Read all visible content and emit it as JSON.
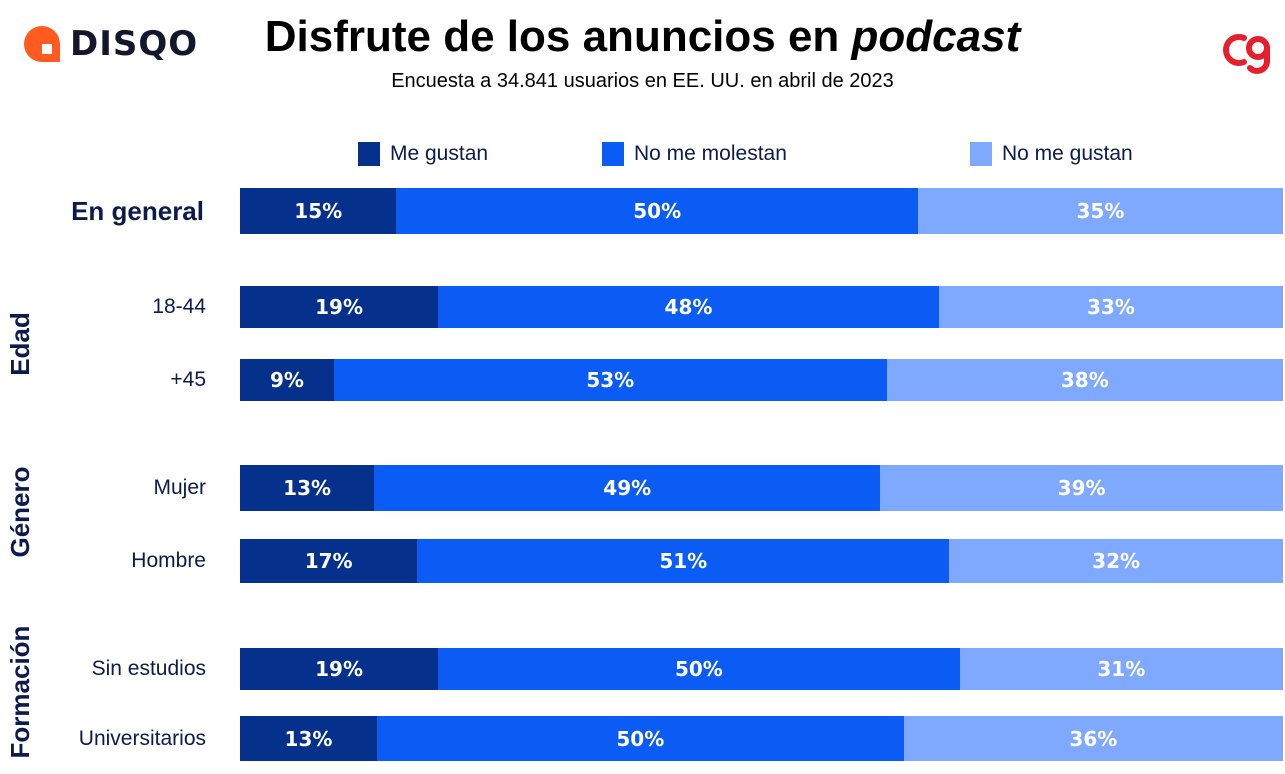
{
  "header": {
    "brand_left": "DISQO",
    "title_main": "Disfrute de los anuncios en ",
    "title_italic": "podcast",
    "subtitle": "Encuesta a 34.841 usuarios en EE. UU. en abril de 2023"
  },
  "colors": {
    "me_gustan": "#05318d",
    "no_me_molestan": "#0a5cf5",
    "no_me_gustan": "#7fa9ff",
    "brand_orange": "#ff5a1f",
    "brand_red": "#e51f2d"
  },
  "chart_data": {
    "type": "bar",
    "orientation": "horizontal",
    "stacked": true,
    "normalized": true,
    "title": "Disfrute de los anuncios en podcast",
    "subtitle": "Encuesta a 34.841 usuarios en EE. UU. en abril de 2023",
    "legend_position": "top",
    "series": [
      {
        "name": "Me gustan",
        "color": "#05318d"
      },
      {
        "name": "No me molestan",
        "color": "#0a5cf5"
      },
      {
        "name": "No me gustan",
        "color": "#7fa9ff"
      }
    ],
    "groups": [
      {
        "label": "",
        "rows": [
          {
            "label": "En general",
            "values": [
              15,
              50,
              35
            ],
            "labels": [
              "15%",
              "50%",
              "35%"
            ]
          }
        ]
      },
      {
        "label": "Edad",
        "rows": [
          {
            "label": "18-44",
            "values": [
              19,
              48,
              33
            ],
            "labels": [
              "19%",
              "48%",
              "33%"
            ]
          },
          {
            "label": "+45",
            "values": [
              9,
              53,
              38
            ],
            "labels": [
              "9%",
              "53%",
              "38%"
            ]
          }
        ]
      },
      {
        "label": "Género",
        "rows": [
          {
            "label": "Mujer",
            "values": [
              13,
              49,
              39
            ],
            "labels": [
              "13%",
              "49%",
              "39%"
            ]
          },
          {
            "label": "Hombre",
            "values": [
              17,
              51,
              32
            ],
            "labels": [
              "17%",
              "51%",
              "32%"
            ]
          }
        ]
      },
      {
        "label": "Formación",
        "rows": [
          {
            "label": "Sin estudios",
            "values": [
              19,
              50,
              31
            ],
            "labels": [
              "19%",
              "50%",
              "31%"
            ]
          },
          {
            "label": "Universitarios",
            "values": [
              13,
              50,
              36
            ],
            "labels": [
              "13%",
              "50%",
              "36%"
            ]
          }
        ]
      }
    ]
  }
}
